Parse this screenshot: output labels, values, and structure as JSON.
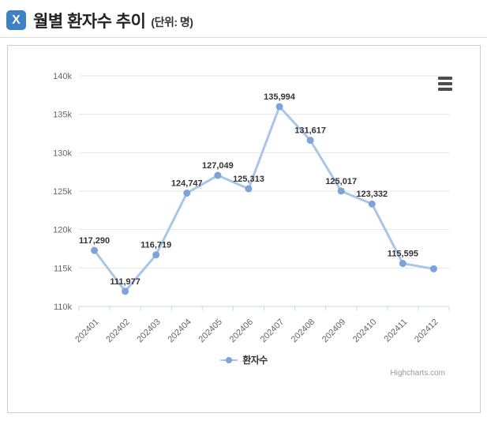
{
  "header": {
    "icon_glyph": "X",
    "title": "월별 환자수 추이",
    "subtitle": "(단위: 명)"
  },
  "chart_data": {
    "type": "line",
    "title": "",
    "categories": [
      "202401",
      "202402",
      "202403",
      "202404",
      "202405",
      "202406",
      "202407",
      "202408",
      "202409",
      "202410",
      "202411",
      "202412"
    ],
    "series": [
      {
        "name": "환자수",
        "values": [
          117290,
          111977,
          116719,
          124747,
          127049,
          125313,
          135994,
          131617,
          125017,
          123332,
          115595,
          114900
        ]
      }
    ],
    "data_labels": [
      "117,290",
      "111,977",
      "116,719",
      "124,747",
      "127,049",
      "125,313",
      "135,994",
      "131,617",
      "125,017",
      "123,332",
      "115,595",
      ""
    ],
    "xlabel": "",
    "ylabel": "",
    "ylim": [
      110000,
      140000
    ],
    "ytick_interval": 5000,
    "ytick_labels": [
      "110k",
      "115k",
      "120k",
      "125k",
      "130k",
      "135k",
      "140k"
    ],
    "grid": "horizontal",
    "legend_position": "bottom-center"
  },
  "legend": {
    "items": [
      {
        "label": "환자수"
      }
    ]
  },
  "menu": {
    "tooltip": "chart context menu"
  },
  "credit": {
    "label": "Highcharts.com"
  },
  "colors": {
    "line": "#aac6e6",
    "marker": "#7ea3d6",
    "grid": "#e6e6e6",
    "axis_line": "#ccd6eb",
    "axis_label": "#666666",
    "data_label": "#333333",
    "logo_bg": "#4080c4",
    "panel_border": "#cccccc"
  }
}
